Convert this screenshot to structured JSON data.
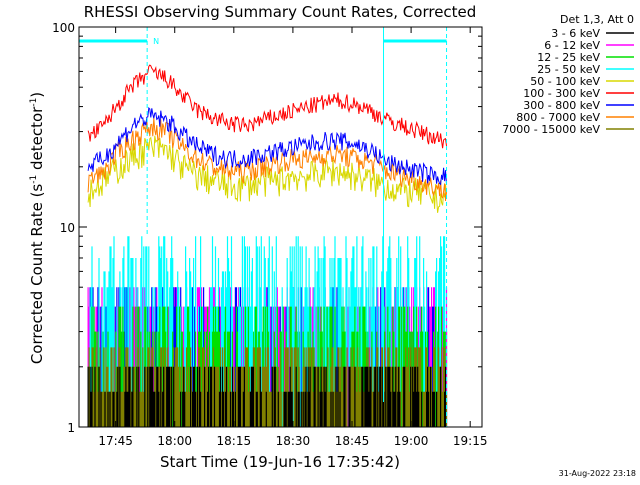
{
  "chart_data": {
    "type": "line",
    "title": "RHESSI Observing Summary Count Rates, Corrected",
    "xlabel": "Start Time (19-Jun-16 17:35:42)",
    "ylabel_main": "Corrected Count Rate (s",
    "ylabel_sup1": "-1",
    "ylabel_mid": " detector",
    "ylabel_sup2": "-1",
    "ylabel_end": ")",
    "y_scale": "log",
    "ylim": [
      1,
      100
    ],
    "y_ticks": [
      "1",
      "10",
      "100"
    ],
    "x_tick_labels": [
      "17:45",
      "18:00",
      "18:15",
      "18:30",
      "18:45",
      "19:00",
      "19:15"
    ],
    "x_tick_minutes": [
      585,
      600,
      615,
      630,
      645,
      660,
      675
    ],
    "x_range_minutes": [
      575.7,
      678
    ],
    "legend_header": "Det 1,3, Att 0",
    "legend_placement": "right",
    "grid": false,
    "night_markers": {
      "marker_label": "N",
      "night_start": 593,
      "night_end": 669
    },
    "saa_band_minutes": [
      [
        575.7,
        593
      ],
      [
        653,
        669
      ]
    ],
    "series": [
      {
        "name": "3 - 6 keV",
        "color": "#000000",
        "level": 1.3
      },
      {
        "name": "6 - 12 keV",
        "color": "#ff00ff",
        "level": 4.0
      },
      {
        "name": "12 - 25 keV",
        "color": "#00e000",
        "level": 3.0
      },
      {
        "name": "25 - 50 keV",
        "color": "#00ffff",
        "level": 6.0
      },
      {
        "name": "50 - 100 keV",
        "color": "#d8d800",
        "level": 18.0
      },
      {
        "name": "100 - 300 keV",
        "color": "#ff0000",
        "level": 38.0
      },
      {
        "name": "300 - 800 keV",
        "color": "#0000ff",
        "level": 24.0
      },
      {
        "name": "800 - 7000 keV",
        "color": "#ff8000",
        "level": 20.0
      },
      {
        "name": "7000 - 15000 keV",
        "color": "#808000",
        "level": 2.0
      }
    ],
    "profiles": {
      "times": [
        578,
        582,
        586,
        590,
        594,
        598,
        602,
        606,
        610,
        614,
        618,
        622,
        626,
        630,
        634,
        638,
        642,
        646,
        650,
        654,
        658,
        662,
        666,
        669
      ],
      "red": [
        28,
        32,
        42,
        52,
        60,
        55,
        45,
        38,
        35,
        33,
        32,
        34,
        36,
        38,
        40,
        42,
        43,
        41,
        38,
        34,
        32,
        30,
        28,
        27
      ],
      "blue": [
        20,
        22,
        27,
        33,
        36,
        34,
        29,
        25,
        23,
        22,
        22,
        23,
        24,
        25,
        26,
        27,
        27,
        26,
        24,
        21,
        20,
        19,
        18,
        18
      ],
      "orange": [
        17,
        19,
        24,
        28,
        32,
        30,
        25,
        22,
        20,
        19,
        19,
        20,
        21,
        22,
        22,
        23,
        23,
        22,
        21,
        19,
        18,
        17,
        16,
        15
      ],
      "yellow": [
        15,
        17,
        20,
        23,
        25,
        24,
        20,
        18,
        17,
        16,
        16,
        17,
        17,
        18,
        18,
        19,
        19,
        18,
        17,
        16,
        15,
        15,
        14,
        14
      ],
      "cyan": [
        5,
        6,
        7.5,
        8.5,
        9,
        8.5,
        7,
        6,
        5.5,
        5,
        5,
        5,
        5,
        5,
        5,
        5,
        5,
        5,
        5,
        5,
        5,
        5,
        5,
        5
      ]
    }
  },
  "timestamp": "31-Aug-2022 23:18"
}
